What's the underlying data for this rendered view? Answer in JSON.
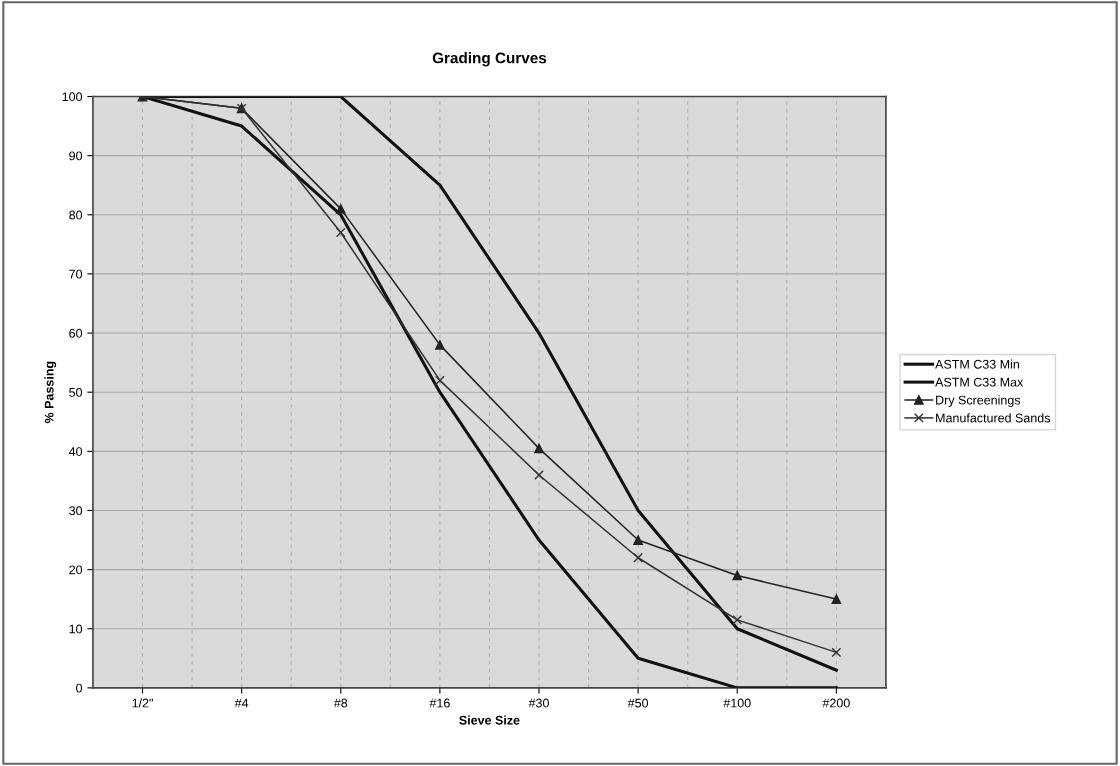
{
  "chart_data": {
    "type": "line",
    "title": "Grading Curves",
    "xlabel": "Sieve Size",
    "ylabel": "% Passing",
    "categories": [
      "1/2\"",
      "#4",
      "#8",
      "#16",
      "#30",
      "#50",
      "#100",
      "#200"
    ],
    "series": [
      {
        "name": "ASTM C33 Min",
        "color": "#111111",
        "marker": "none",
        "values": [
          100,
          95,
          80,
          50,
          25,
          5,
          0,
          0
        ]
      },
      {
        "name": "ASTM C33 Max",
        "color": "#111111",
        "marker": "none",
        "values": [
          100,
          100,
          100,
          85,
          60,
          30,
          10,
          3
        ]
      },
      {
        "name": "Dry Screenings",
        "color": "#222222",
        "marker": "triangle",
        "values": [
          100,
          98,
          81,
          58,
          40.5,
          25,
          19,
          15
        ]
      },
      {
        "name": "Manufactured Sands",
        "color": "#333333",
        "marker": "cross",
        "values": [
          100,
          98,
          77,
          52,
          36,
          22,
          11.5,
          6
        ]
      }
    ],
    "ylim": [
      0,
      100
    ],
    "yticks": [
      0,
      10,
      20,
      30,
      40,
      50,
      60,
      70,
      80,
      90,
      100
    ],
    "grid": true,
    "legend": "right",
    "line_style": "solid"
  }
}
